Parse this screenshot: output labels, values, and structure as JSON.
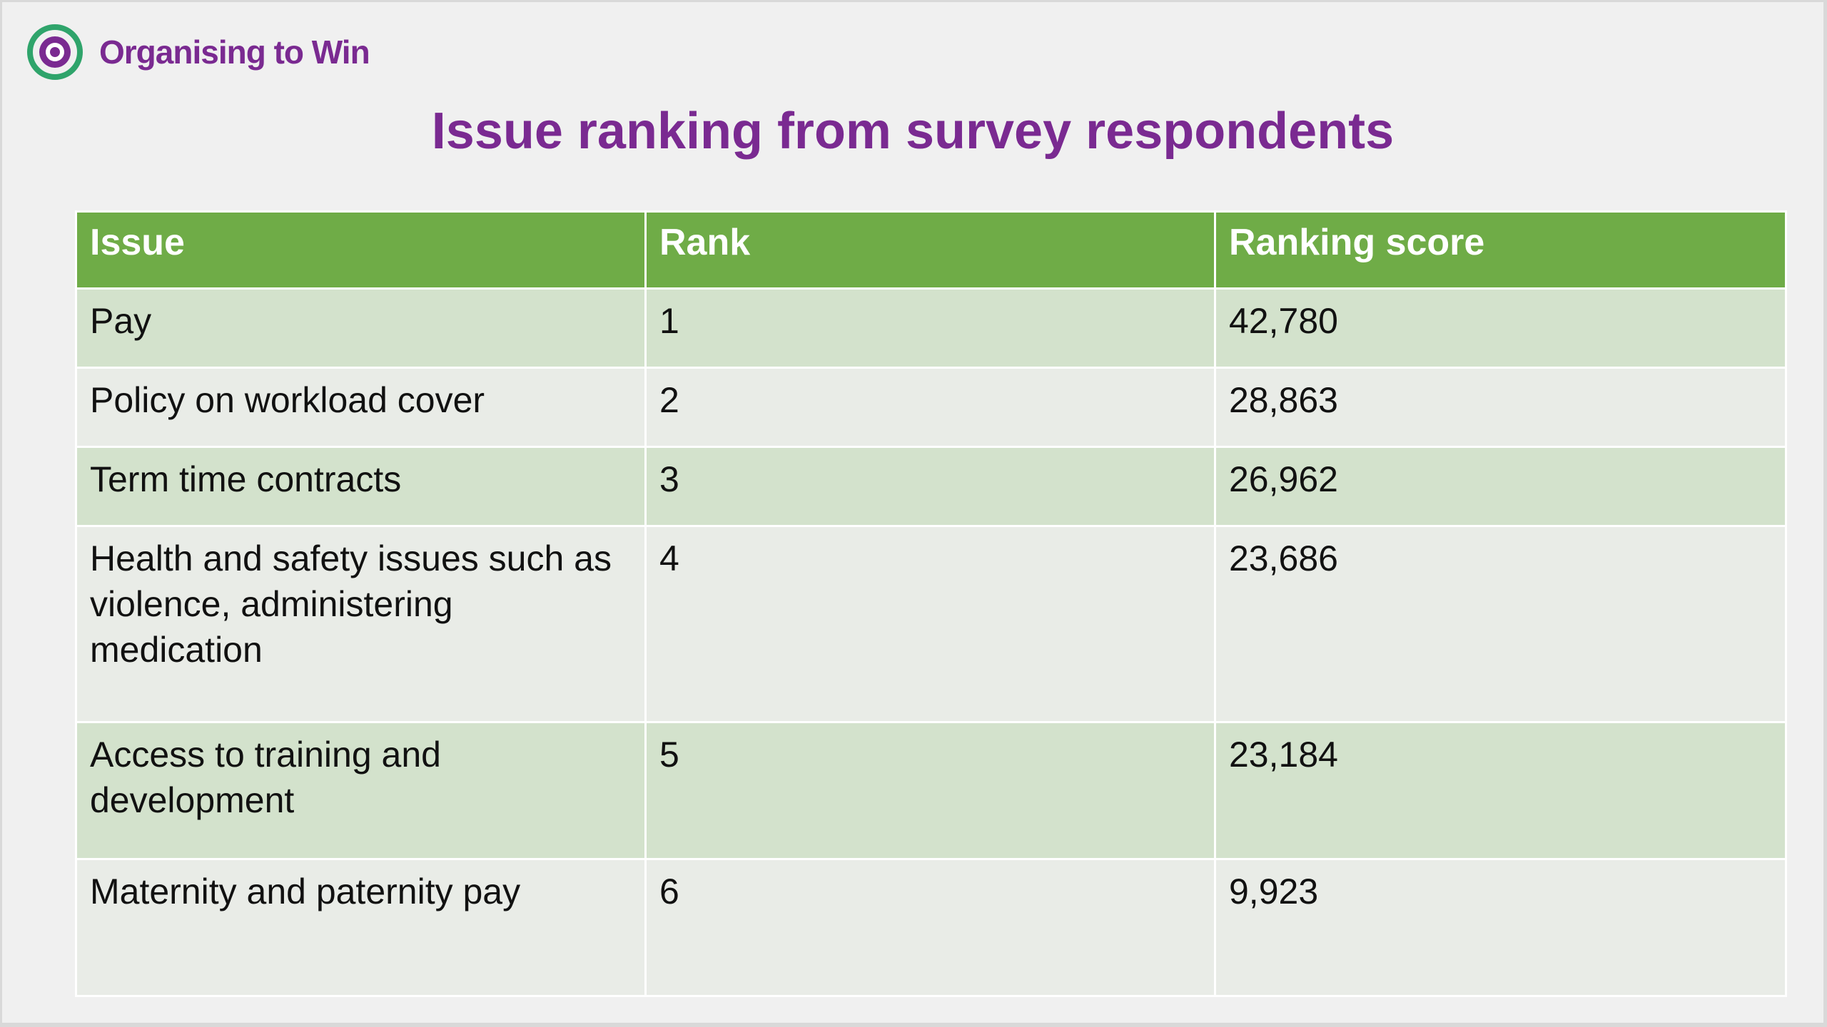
{
  "brand": {
    "name": "Organising to Win",
    "colors": {
      "purple": "#7a2a91",
      "green": "#2fa46b",
      "header_green": "#6fac47"
    }
  },
  "title": "Issue ranking from survey respondents",
  "table": {
    "headers": [
      "Issue",
      "Rank",
      "Ranking score"
    ],
    "rows": [
      {
        "issue": "Pay",
        "rank": "1",
        "score": "42,780"
      },
      {
        "issue": "Policy on workload cover",
        "rank": "2",
        "score": "28,863"
      },
      {
        "issue": "Term time contracts",
        "rank": "3",
        "score": "26,962"
      },
      {
        "issue": "Health and safety issues such as violence, administering medication",
        "rank": "4",
        "score": "23,686"
      },
      {
        "issue": "Access to training and development",
        "rank": "5",
        "score": "23,184"
      },
      {
        "issue": "Maternity and paternity pay",
        "rank": "6",
        "score": "9,923"
      }
    ]
  }
}
